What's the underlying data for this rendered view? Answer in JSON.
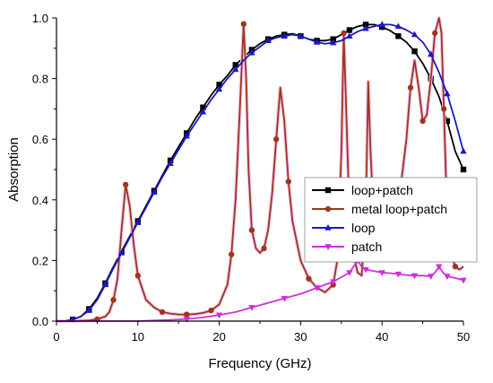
{
  "chart_data": {
    "type": "line",
    "xlabel": "Frequency (GHz)",
    "ylabel": "Absorption",
    "xlim": [
      0,
      50
    ],
    "ylim": [
      0,
      1.0
    ],
    "x_ticks": [
      0,
      10,
      20,
      30,
      40,
      50
    ],
    "y_ticks": [
      0.0,
      0.2,
      0.4,
      0.6,
      0.8,
      1.0
    ],
    "x_tick_labels": [
      "0",
      "10",
      "20",
      "30",
      "40",
      "50"
    ],
    "y_tick_labels": [
      "0.0",
      "0.2",
      "0.4",
      "0.6",
      "0.8",
      "1.0"
    ],
    "grid": false,
    "legend_position": "right",
    "series": [
      {
        "name": "loop+patch",
        "color": "#000000",
        "marker": "square",
        "x": [
          0,
          1,
          2,
          3,
          4,
          5,
          6,
          7,
          8,
          9,
          10,
          11,
          12,
          13,
          14,
          15,
          16,
          17,
          18,
          19,
          20,
          21,
          22,
          23,
          24,
          25,
          26,
          27,
          28,
          29,
          30,
          31,
          32,
          33,
          34,
          35,
          36,
          37,
          38,
          39,
          40,
          41,
          42,
          43,
          44,
          45,
          46,
          47,
          48,
          49,
          50
        ],
        "y": [
          0,
          0,
          0.005,
          0.015,
          0.04,
          0.075,
          0.125,
          0.18,
          0.23,
          0.28,
          0.33,
          0.38,
          0.43,
          0.48,
          0.53,
          0.575,
          0.62,
          0.665,
          0.705,
          0.745,
          0.78,
          0.81,
          0.845,
          0.87,
          0.895,
          0.915,
          0.93,
          0.94,
          0.945,
          0.948,
          0.94,
          0.93,
          0.925,
          0.925,
          0.93,
          0.945,
          0.96,
          0.972,
          0.978,
          0.978,
          0.97,
          0.958,
          0.94,
          0.92,
          0.89,
          0.85,
          0.8,
          0.74,
          0.66,
          0.56,
          0.5
        ]
      },
      {
        "name": "metal loop+patch",
        "color": "#a0341e",
        "marker": "circle",
        "x": [
          0,
          2,
          4,
          5,
          6,
          6.5,
          7,
          7.5,
          8,
          8.5,
          9,
          9.5,
          10,
          11,
          12,
          13,
          14,
          15,
          16,
          17,
          18,
          19,
          20,
          21,
          21.5,
          22,
          22.5,
          23,
          23.3,
          23.6,
          24,
          24.5,
          25,
          25.5,
          26,
          26.5,
          27,
          27.5,
          28,
          28.5,
          29,
          30,
          31,
          32,
          33,
          34,
          34.5,
          35,
          35.3,
          35.6,
          36,
          36.5,
          37,
          37.5,
          38,
          38.3,
          38.6,
          39,
          39.5,
          40,
          41,
          42,
          43,
          43.5,
          44,
          44.5,
          45,
          45.5,
          46,
          46.5,
          47,
          47.3,
          47.6,
          48,
          48.5,
          49,
          49.5,
          50
        ],
        "y": [
          0,
          0,
          0.002,
          0.006,
          0.015,
          0.03,
          0.07,
          0.14,
          0.3,
          0.45,
          0.38,
          0.25,
          0.15,
          0.07,
          0.045,
          0.03,
          0.025,
          0.022,
          0.022,
          0.023,
          0.027,
          0.035,
          0.055,
          0.12,
          0.22,
          0.4,
          0.68,
          0.98,
          0.8,
          0.5,
          0.3,
          0.24,
          0.225,
          0.24,
          0.3,
          0.42,
          0.6,
          0.77,
          0.66,
          0.46,
          0.33,
          0.2,
          0.14,
          0.11,
          0.095,
          0.12,
          0.2,
          0.55,
          0.95,
          0.7,
          0.35,
          0.22,
          0.16,
          0.15,
          0.35,
          0.79,
          0.55,
          0.33,
          0.22,
          0.2,
          0.25,
          0.38,
          0.6,
          0.77,
          0.86,
          0.77,
          0.66,
          0.68,
          0.8,
          0.95,
          1.0,
          0.95,
          0.7,
          0.35,
          0.22,
          0.18,
          0.17,
          0.18
        ]
      },
      {
        "name": "loop",
        "color": "#1919c8",
        "marker": "triangle-up",
        "x": [
          0,
          1,
          2,
          3,
          4,
          5,
          6,
          7,
          8,
          9,
          10,
          11,
          12,
          13,
          14,
          15,
          16,
          17,
          18,
          19,
          20,
          21,
          22,
          23,
          24,
          25,
          26,
          27,
          28,
          29,
          30,
          31,
          32,
          33,
          34,
          35,
          36,
          37,
          38,
          39,
          40,
          41,
          42,
          43,
          44,
          45,
          46,
          47,
          48,
          49,
          50
        ],
        "y": [
          0,
          0,
          0.005,
          0.015,
          0.035,
          0.07,
          0.12,
          0.175,
          0.225,
          0.275,
          0.325,
          0.375,
          0.425,
          0.475,
          0.52,
          0.565,
          0.61,
          0.65,
          0.69,
          0.73,
          0.765,
          0.8,
          0.83,
          0.86,
          0.885,
          0.905,
          0.925,
          0.935,
          0.94,
          0.945,
          0.94,
          0.93,
          0.92,
          0.915,
          0.918,
          0.925,
          0.94,
          0.955,
          0.965,
          0.972,
          0.978,
          0.978,
          0.972,
          0.96,
          0.945,
          0.92,
          0.88,
          0.82,
          0.75,
          0.66,
          0.56
        ]
      },
      {
        "name": "patch",
        "color": "#d22ddc",
        "marker": "triangle-down",
        "x": [
          0,
          2,
          4,
          6,
          8,
          10,
          12,
          14,
          16,
          18,
          20,
          22,
          24,
          26,
          28,
          30,
          32,
          33,
          34,
          35,
          36,
          36.5,
          37,
          37.5,
          38,
          39,
          40,
          41,
          42,
          43,
          44,
          45,
          46,
          46.5,
          47,
          47.5,
          48,
          49,
          50
        ],
        "y": [
          0,
          0,
          0,
          0,
          0,
          0,
          0.002,
          0.004,
          0.007,
          0.012,
          0.02,
          0.03,
          0.045,
          0.06,
          0.075,
          0.09,
          0.11,
          0.12,
          0.13,
          0.145,
          0.16,
          0.18,
          0.2,
          0.18,
          0.17,
          0.165,
          0.16,
          0.158,
          0.155,
          0.152,
          0.15,
          0.15,
          0.148,
          0.16,
          0.18,
          0.16,
          0.148,
          0.142,
          0.135
        ]
      }
    ]
  }
}
